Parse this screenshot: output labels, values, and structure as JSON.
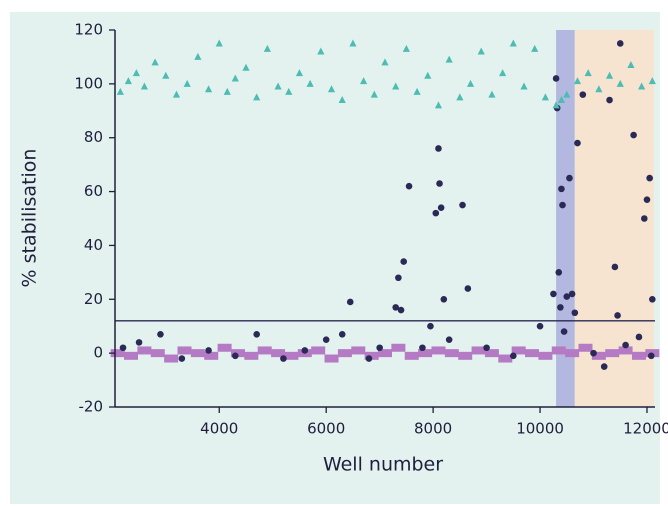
{
  "chart_data": {
    "type": "scatter",
    "xlabel": "Well number",
    "ylabel": "% stabilisation",
    "xlim": [
      2050,
      12150
    ],
    "ylim": [
      -20,
      120
    ],
    "xticks": [
      4000,
      6000,
      8000,
      10000,
      12000
    ],
    "yticks": [
      -20,
      0,
      20,
      40,
      60,
      80,
      100,
      120
    ],
    "grid": false,
    "hline": 12,
    "bands": [
      {
        "x": [
          10300,
          10650
        ],
        "color": "#b3b8e0"
      },
      {
        "x": [
          10650,
          12130
        ],
        "color": "#f7e4d0"
      }
    ],
    "series": [
      {
        "marker": "square",
        "color": "#b57ac4",
        "x": [
          2100,
          2350,
          2600,
          2850,
          3100,
          3350,
          3600,
          3850,
          4100,
          4350,
          4600,
          4850,
          5100,
          5350,
          5600,
          5850,
          6100,
          6350,
          6600,
          6850,
          7100,
          7350,
          7600,
          7850,
          8100,
          8350,
          8600,
          8850,
          9100,
          9350,
          9600,
          9850,
          10100,
          10350,
          10600,
          10850,
          11100,
          11350,
          11600,
          11850,
          12100
        ],
        "values": [
          0,
          -1,
          1,
          0,
          -2,
          1,
          0,
          -1,
          2,
          0,
          -1,
          1,
          0,
          -1,
          0,
          1,
          -2,
          0,
          1,
          -1,
          0,
          2,
          -1,
          0,
          1,
          0,
          -1,
          1,
          0,
          -2,
          1,
          0,
          -1,
          1,
          0,
          2,
          -1,
          0,
          1,
          -1,
          0
        ]
      },
      {
        "marker": "circle",
        "color": "#2b2955",
        "x": [
          2200,
          2500,
          2900,
          3300,
          3800,
          4300,
          4700,
          5200,
          5600,
          6000,
          6300,
          6450,
          6800,
          7000,
          7300,
          7350,
          7450,
          7400,
          7550,
          7800,
          7950,
          8050,
          8100,
          8120,
          8150,
          8200,
          8300,
          8550,
          8650,
          9000,
          9500,
          10000,
          10250,
          10300,
          10320,
          10350,
          10380,
          10400,
          10420,
          10450,
          10500,
          10550,
          10600,
          10650,
          10700,
          10800,
          11000,
          11200,
          11300,
          11400,
          11450,
          11500,
          11600,
          11750,
          11850,
          11950,
          12000,
          12050,
          12100,
          12080
        ],
        "values": [
          2,
          4,
          7,
          -2,
          1,
          -1,
          7,
          -2,
          1,
          5,
          7,
          19,
          -2,
          2,
          17,
          28,
          34,
          16,
          62,
          2,
          10,
          52,
          76,
          63,
          54,
          20,
          5,
          55,
          24,
          2,
          -1,
          10,
          22,
          102,
          91,
          30,
          17,
          61,
          55,
          8,
          21,
          65,
          22,
          15,
          78,
          96,
          0,
          -5,
          94,
          32,
          14,
          115,
          3,
          81,
          6,
          50,
          57,
          65,
          20,
          -1
        ]
      },
      {
        "marker": "triangle",
        "color": "#4dbdb3",
        "x": [
          2150,
          2300,
          2450,
          2600,
          2800,
          3000,
          3200,
          3400,
          3600,
          3800,
          4000,
          4150,
          4300,
          4500,
          4700,
          4900,
          5100,
          5300,
          5500,
          5700,
          5900,
          6100,
          6300,
          6500,
          6700,
          6900,
          7100,
          7300,
          7500,
          7700,
          7900,
          8100,
          8300,
          8500,
          8700,
          8900,
          9100,
          9300,
          9500,
          9700,
          9900,
          10100,
          10300,
          10400,
          10500,
          10700,
          10900,
          11100,
          11300,
          11500,
          11700,
          11900,
          12100
        ],
        "values": [
          97,
          101,
          104,
          99,
          108,
          103,
          96,
          100,
          110,
          98,
          115,
          97,
          102,
          106,
          95,
          113,
          99,
          97,
          104,
          100,
          112,
          98,
          94,
          115,
          101,
          96,
          108,
          99,
          113,
          97,
          103,
          92,
          109,
          95,
          100,
          112,
          96,
          104,
          115,
          99,
          113,
          95,
          92,
          94,
          96,
          101,
          104,
          98,
          103,
          100,
          107,
          99,
          101
        ]
      }
    ]
  }
}
